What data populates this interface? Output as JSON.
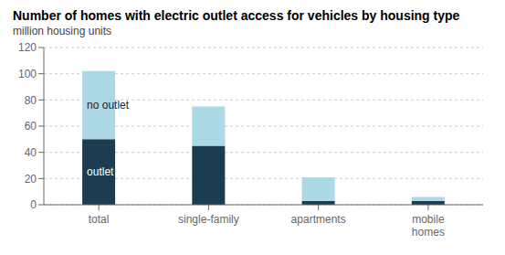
{
  "chart_data": {
    "type": "bar",
    "title": "Number of homes with electric outlet access for vehicles by housing type",
    "subtitle": "million housing units",
    "categories": [
      "total",
      "single-family",
      "apartments",
      "mobile\nhomes"
    ],
    "series": [
      {
        "name": "outlet",
        "color": "#1c3d4f",
        "values": [
          50,
          45,
          3,
          3
        ]
      },
      {
        "name": "no outlet",
        "color": "#add8e6",
        "values": [
          52,
          30,
          18,
          3
        ]
      }
    ],
    "stacked": true,
    "ylim": [
      0,
      120
    ],
    "yticks": [
      0,
      20,
      40,
      60,
      80,
      100,
      120
    ],
    "grid": true
  }
}
